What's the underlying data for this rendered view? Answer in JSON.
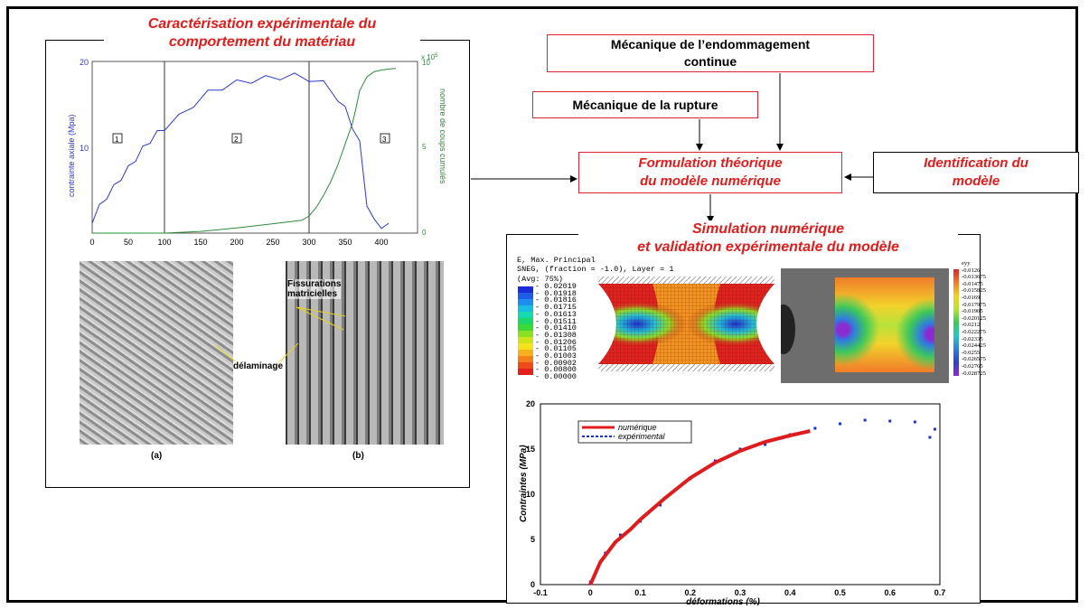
{
  "left_panel": {
    "title_line1": "Caractérisation expérimentale du",
    "title_line2": "comportement du matériau",
    "chart_top": {
      "y_left_label": "contrainte axiale (Mpa)",
      "y_right_label": "nombre de coups cumulés",
      "right_exponent": "x 10",
      "right_exponent_power": "5",
      "x_ticks": [
        "0",
        "50",
        "100",
        "150",
        "200",
        "250",
        "300",
        "350",
        "400"
      ],
      "y_left_ticks": [
        "20",
        "10"
      ],
      "y_right_ticks": [
        "10",
        "5",
        "0"
      ],
      "zones": [
        "1",
        "2",
        "3"
      ]
    },
    "photo_labels": {
      "fissurations": "Fissurations",
      "matricielles": "matricielles",
      "delaminage": "délaminage",
      "cap_a": "(a)",
      "cap_b": "(b)"
    }
  },
  "boxes": {
    "endommagement_line1": "Mécanique de l’endommagement",
    "endommagement_line2": "continue",
    "rupture": "Mécanique de la rupture",
    "formulation_line1": "Formulation théorique",
    "formulation_line2": "du modèle numérique",
    "identification_line1": "Identification du",
    "identification_line2": "modèle"
  },
  "right_panel": {
    "title_line1": "Simulation numérique",
    "title_line2": "et validation expérimentale du modèle",
    "fe_legend_header": "E, Max. Principal\nSNEG, (fraction = -1.0), Layer = 1\n(Avg: 75%)",
    "fe_legend_values": [
      "- 0.02019",
      "- 0.01918",
      "- 0.01816",
      "- 0.01715",
      "- 0.01613",
      "- 0.01511",
      "- 0.01410",
      "- 0.01308",
      "- 0.01206",
      "- 0.01105",
      "- 0.01003",
      "- 0.00902",
      "- 0.00800",
      "- 0.00000"
    ],
    "fe_legend_colors": [
      "#1c2bd8",
      "#1f5ce8",
      "#1d8ef0",
      "#19bde0",
      "#18d8b0",
      "#1bd86a",
      "#3cd833",
      "#8be022",
      "#cde41c",
      "#f3e21c",
      "#f6b01c",
      "#f4801c",
      "#ee4a1c",
      "#e3201c"
    ],
    "dic_scale_header": "eyy",
    "dic_scale_values": [
      "-0.0126",
      "-0.013675",
      "-0.01475",
      "-0.015825",
      "-0.0169",
      "-0.017975",
      "-0.01905",
      "-0.020125",
      "-0.0212",
      "-0.022275",
      "-0.02335",
      "-0.024425",
      "-0.0255",
      "-0.026575",
      "-0.02765",
      "-0.028725"
    ]
  },
  "chart_data": [
    {
      "type": "line",
      "series": [
        {
          "name": "",
          "axis": "left",
          "x": [
            0,
            10,
            20,
            30,
            40,
            50,
            60,
            70,
            80,
            90,
            100,
            120,
            140,
            160,
            180,
            200,
            220,
            240,
            260,
            280,
            300,
            320,
            340,
            350,
            360,
            370,
            380,
            390,
            400,
            410
          ],
          "values": [
            1.5,
            3,
            4.3,
            5.3,
            6.5,
            7.5,
            8.7,
            9.8,
            10.8,
            11.6,
            12.3,
            13.5,
            15,
            16.3,
            17,
            17.5,
            17.8,
            18,
            18.2,
            18.3,
            18,
            17.4,
            15.7,
            14.4,
            12.5,
            10.4,
            3.5,
            1.3,
            0.9,
            0.8
          ]
        },
        {
          "name": "",
          "axis": "right",
          "x": [
            0,
            100,
            150,
            200,
            250,
            290,
            300,
            310,
            320,
            330,
            340,
            350,
            360,
            365,
            370,
            380,
            390,
            400,
            410,
            420
          ],
          "values": [
            0,
            0,
            0.1,
            0.3,
            0.55,
            0.75,
            1.0,
            1.5,
            2.2,
            3.0,
            4.0,
            5.2,
            6.4,
            7.3,
            8.3,
            9.1,
            9.4,
            9.5,
            9.55,
            9.6
          ]
        }
      ],
      "xlabel": "",
      "ylabel": "contrainte axiale (Mpa)",
      "ylabel_right": "nombre de coups cumulés",
      "xlim": [
        0,
        450
      ],
      "ylim": [
        0,
        20
      ],
      "ylim_right": [
        0,
        10
      ],
      "vlines": [
        100,
        300
      ],
      "grid": false,
      "colors": {
        "stress": "#2a39d6",
        "count": "#2e8b3a"
      }
    },
    {
      "type": "line",
      "series": [
        {
          "name": "numérique",
          "x": [
            0,
            0.02,
            0.05,
            0.08,
            0.1,
            0.15,
            0.2,
            0.25,
            0.3,
            0.35,
            0.4,
            0.44
          ],
          "values": [
            0,
            2.5,
            4.7,
            6.1,
            7.2,
            9.6,
            11.8,
            13.5,
            14.8,
            15.8,
            16.5,
            17
          ]
        },
        {
          "name": "expérimental",
          "x": [
            0,
            0.03,
            0.06,
            0.1,
            0.14,
            0.2,
            0.25,
            0.3,
            0.35,
            0.4,
            0.45,
            0.5,
            0.55,
            0.6,
            0.65,
            0.68,
            0.69
          ],
          "values": [
            0.3,
            3.5,
            5.5,
            7,
            8.8,
            11.7,
            13.7,
            15,
            15.5,
            16.6,
            17.3,
            17.8,
            18.2,
            18.1,
            18,
            16.3,
            17.2
          ]
        }
      ],
      "xlabel": "déformations (%)",
      "ylabel": "Contraintes (MPa)",
      "x_ticks": [
        "-0.1",
        "0",
        "0.1",
        "0.2",
        "0.3",
        "0.4",
        "0.5",
        "0.6",
        "0.7"
      ],
      "y_ticks": [
        "0",
        "5",
        "10",
        "15",
        "20"
      ],
      "xlim": [
        -0.1,
        0.7
      ],
      "ylim": [
        0,
        20
      ],
      "legend": "top-left",
      "colors": {
        "numérique": "#e01b1b",
        "expérimental": "#1b2fd8"
      }
    }
  ]
}
